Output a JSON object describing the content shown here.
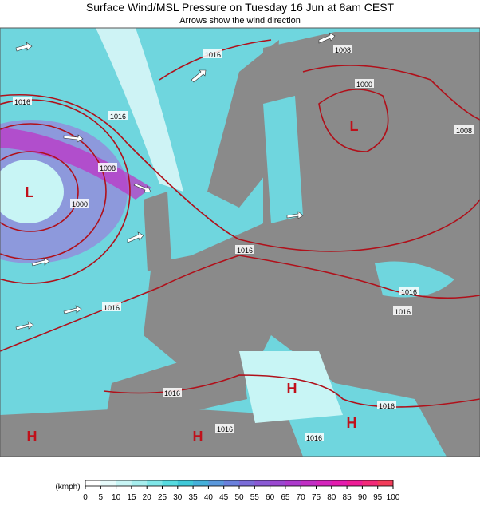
{
  "header": {
    "title": "Surface Wind/MSL Pressure on Tuesday 16 Jun at 8am CEST",
    "subtitle": "Arrows show the wind direction"
  },
  "map": {
    "labels": [
      "1016",
      "1016",
      "1008",
      "1000",
      "1016",
      "1016",
      "1016",
      "1016",
      "1016",
      "1016",
      "1016",
      "1016",
      "1008",
      "1000",
      "1008",
      "1016",
      "L",
      "L",
      "H",
      "H",
      "H",
      "H"
    ]
  },
  "legend": {
    "unit": "(kmph)",
    "ticks": [
      0,
      5,
      10,
      15,
      20,
      25,
      30,
      35,
      40,
      45,
      50,
      55,
      60,
      65,
      70,
      75,
      80,
      85,
      90,
      95,
      100
    ],
    "colors": [
      "#ffffff",
      "#e6fafa",
      "#c8f5f5",
      "#a6eeee",
      "#7fe6e8",
      "#56dbe0",
      "#3fc8d8",
      "#45b0da",
      "#5a98dc",
      "#6a80dc",
      "#7a6cd8",
      "#8a5ad4",
      "#9a48d0",
      "#ac3acc",
      "#c02ec4",
      "#d424bc",
      "#e41cae",
      "#ee1c96",
      "#f22a78",
      "#f23c5a"
    ]
  }
}
